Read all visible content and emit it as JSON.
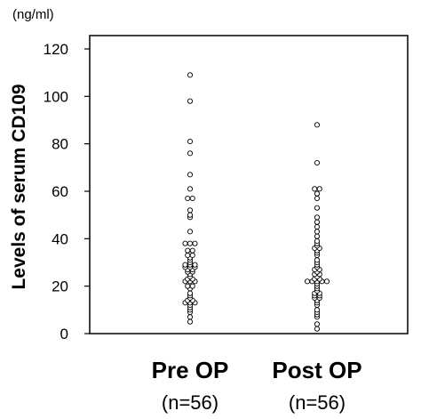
{
  "chart_data": {
    "type": "scatter",
    "title": "",
    "unit_label": "(ng/ml)",
    "ylabel": "Levels of serum CD109",
    "xlabel": "",
    "ylim": [
      0,
      120
    ],
    "yticks": [
      "0",
      "20",
      "40",
      "60",
      "80",
      "100",
      "120"
    ],
    "grid": false,
    "categories": [
      {
        "label": "Pre OP",
        "sublabel": "(n=56)"
      },
      {
        "label": "Post OP",
        "sublabel": "(n=56)"
      }
    ],
    "series": [
      {
        "values": [
          109,
          98,
          81,
          76,
          67,
          61,
          57,
          57,
          52,
          50,
          49,
          43,
          38,
          38,
          38,
          35,
          35,
          33,
          33,
          32,
          31,
          30,
          29,
          29,
          29,
          28,
          28,
          28,
          27,
          27,
          26,
          26,
          25,
          24,
          23,
          23,
          22,
          22,
          22,
          20,
          20,
          19,
          17,
          16,
          15,
          14,
          14,
          13,
          13,
          13,
          12,
          11,
          10,
          9,
          7,
          5
        ]
      },
      {
        "values": [
          88,
          72,
          61,
          61,
          59,
          57,
          53,
          49,
          47,
          45,
          43,
          41,
          39,
          38,
          37,
          36,
          36,
          35,
          34,
          33,
          31,
          30,
          29,
          28,
          27,
          27,
          26,
          25,
          25,
          24,
          23,
          23,
          22,
          22,
          22,
          22,
          22,
          21,
          20,
          19,
          18,
          17,
          17,
          16,
          16,
          15,
          15,
          14,
          13,
          12,
          10,
          9,
          8,
          7,
          4,
          2
        ]
      }
    ]
  }
}
